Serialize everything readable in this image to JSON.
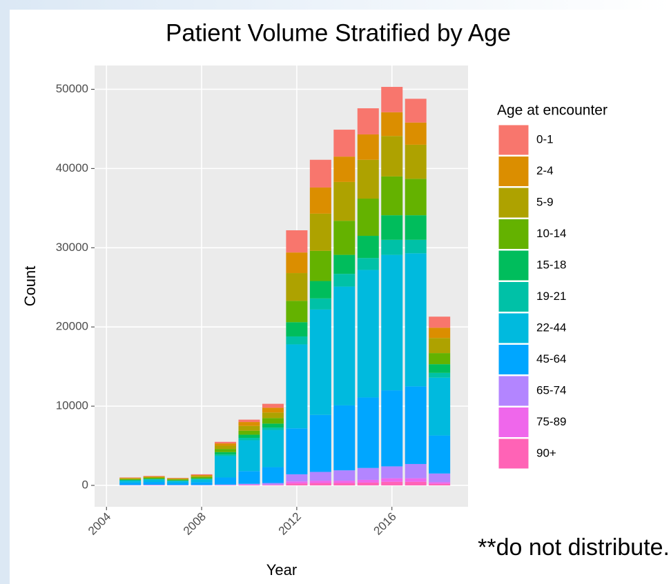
{
  "chart_data": {
    "type": "bar",
    "stacked": true,
    "title": "Patient Volume Stratified by Age",
    "x_label": "Year",
    "y_label": "Count",
    "legend_title": "Age at encounter",
    "annotation": "**do not distribute.",
    "x": [
      2005,
      2006,
      2007,
      2008,
      2009,
      2010,
      2011,
      2012,
      2013,
      2014,
      2015,
      2016,
      2017,
      2018
    ],
    "xlim": [
      2003.5,
      2019.2
    ],
    "xticks": [
      2004,
      2008,
      2012,
      2016
    ],
    "ylim": [
      -2700,
      53000
    ],
    "yticks": [
      0,
      10000,
      20000,
      30000,
      40000,
      50000
    ],
    "grid": true,
    "legend": "right",
    "series": [
      {
        "name": "0-1",
        "color": "#F8766D",
        "values": [
          50,
          60,
          50,
          100,
          200,
          300,
          500,
          2800,
          3500,
          3400,
          3300,
          3200,
          3000,
          1400
        ]
      },
      {
        "name": "2-4",
        "color": "#DB8E00",
        "values": [
          50,
          70,
          50,
          100,
          300,
          500,
          600,
          2600,
          3300,
          3200,
          3200,
          3000,
          2800,
          1300
        ]
      },
      {
        "name": "5-9",
        "color": "#AEA200",
        "values": [
          100,
          110,
          100,
          150,
          400,
          600,
          700,
          3500,
          4700,
          4900,
          4900,
          5100,
          4300,
          1900
        ]
      },
      {
        "name": "10-14",
        "color": "#64B200",
        "values": [
          100,
          110,
          100,
          150,
          400,
          500,
          700,
          2700,
          3800,
          4300,
          4700,
          4900,
          4600,
          1400
        ]
      },
      {
        "name": "15-18",
        "color": "#00BD5C",
        "values": [
          50,
          70,
          50,
          100,
          300,
          400,
          500,
          1800,
          2200,
          2400,
          2800,
          3100,
          3100,
          1100
        ]
      },
      {
        "name": "19-21",
        "color": "#00C1A7",
        "values": [
          50,
          50,
          50,
          50,
          200,
          300,
          300,
          1000,
          1400,
          1600,
          1500,
          1900,
          1700,
          600
        ]
      },
      {
        "name": "22-44",
        "color": "#00BADE",
        "values": [
          250,
          300,
          250,
          350,
          2700,
          3900,
          4700,
          10600,
          13300,
          15000,
          16100,
          17100,
          16800,
          7300
        ]
      },
      {
        "name": "45-64",
        "color": "#00A6FF",
        "values": [
          300,
          350,
          250,
          350,
          900,
          1600,
          2000,
          5800,
          7200,
          8200,
          8900,
          9600,
          9800,
          4800
        ]
      },
      {
        "name": "65-74",
        "color": "#B385FF",
        "values": [
          30,
          40,
          25,
          25,
          50,
          100,
          200,
          900,
          1100,
          1300,
          1500,
          1500,
          1800,
          1100
        ]
      },
      {
        "name": "75-89",
        "color": "#EF67EB",
        "values": [
          10,
          20,
          10,
          10,
          25,
          50,
          50,
          250,
          300,
          300,
          350,
          450,
          450,
          200
        ]
      },
      {
        "name": "90+",
        "color": "#FF63B6",
        "values": [
          10,
          20,
          15,
          15,
          25,
          50,
          50,
          250,
          300,
          300,
          350,
          450,
          450,
          200
        ]
      }
    ]
  }
}
